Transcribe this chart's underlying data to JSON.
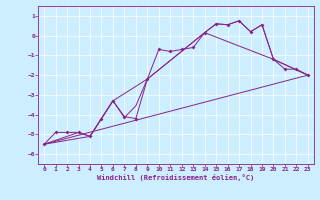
{
  "xlabel": "Windchill (Refroidissement éolien,°C)",
  "bg_color": "#cceeff",
  "line_color": "#882288",
  "xlim": [
    -0.5,
    23.5
  ],
  "ylim": [
    -6.5,
    1.5
  ],
  "yticks": [
    1,
    0,
    -1,
    -2,
    -3,
    -4,
    -5,
    -6
  ],
  "xticks": [
    0,
    1,
    2,
    3,
    4,
    5,
    6,
    7,
    8,
    9,
    10,
    11,
    12,
    13,
    14,
    15,
    16,
    17,
    18,
    19,
    20,
    21,
    22,
    23
  ],
  "series1": [
    [
      0,
      -5.5
    ],
    [
      1,
      -4.9
    ],
    [
      2,
      -4.9
    ],
    [
      3,
      -4.9
    ],
    [
      4,
      -5.1
    ],
    [
      5,
      -4.2
    ],
    [
      6,
      -3.3
    ],
    [
      7,
      -4.1
    ],
    [
      8,
      -4.2
    ],
    [
      9,
      -2.2
    ],
    [
      10,
      -0.7
    ],
    [
      11,
      -0.8
    ],
    [
      12,
      -0.7
    ],
    [
      13,
      -0.6
    ],
    [
      14,
      0.15
    ],
    [
      15,
      0.6
    ],
    [
      16,
      0.55
    ],
    [
      17,
      0.75
    ],
    [
      18,
      0.2
    ],
    [
      19,
      0.55
    ],
    [
      20,
      -1.2
    ],
    [
      21,
      -1.7
    ],
    [
      22,
      -1.7
    ],
    [
      23,
      -2.0
    ]
  ],
  "series2": [
    [
      0,
      -5.5
    ],
    [
      4,
      -5.1
    ],
    [
      6,
      -3.3
    ],
    [
      9,
      -2.2
    ],
    [
      14,
      0.15
    ],
    [
      20,
      -1.2
    ],
    [
      23,
      -2.0
    ]
  ],
  "series3": [
    [
      0,
      -5.5
    ],
    [
      23,
      -2.0
    ]
  ],
  "series4": [
    [
      0,
      -5.5
    ],
    [
      3,
      -4.9
    ],
    [
      4,
      -5.1
    ],
    [
      6,
      -3.3
    ],
    [
      7,
      -4.15
    ],
    [
      8,
      -3.55
    ],
    [
      9,
      -2.2
    ],
    [
      14,
      0.15
    ],
    [
      15,
      0.6
    ],
    [
      16,
      0.55
    ],
    [
      17,
      0.75
    ],
    [
      18,
      0.2
    ],
    [
      19,
      0.55
    ],
    [
      20,
      -1.2
    ],
    [
      23,
      -2.0
    ]
  ]
}
